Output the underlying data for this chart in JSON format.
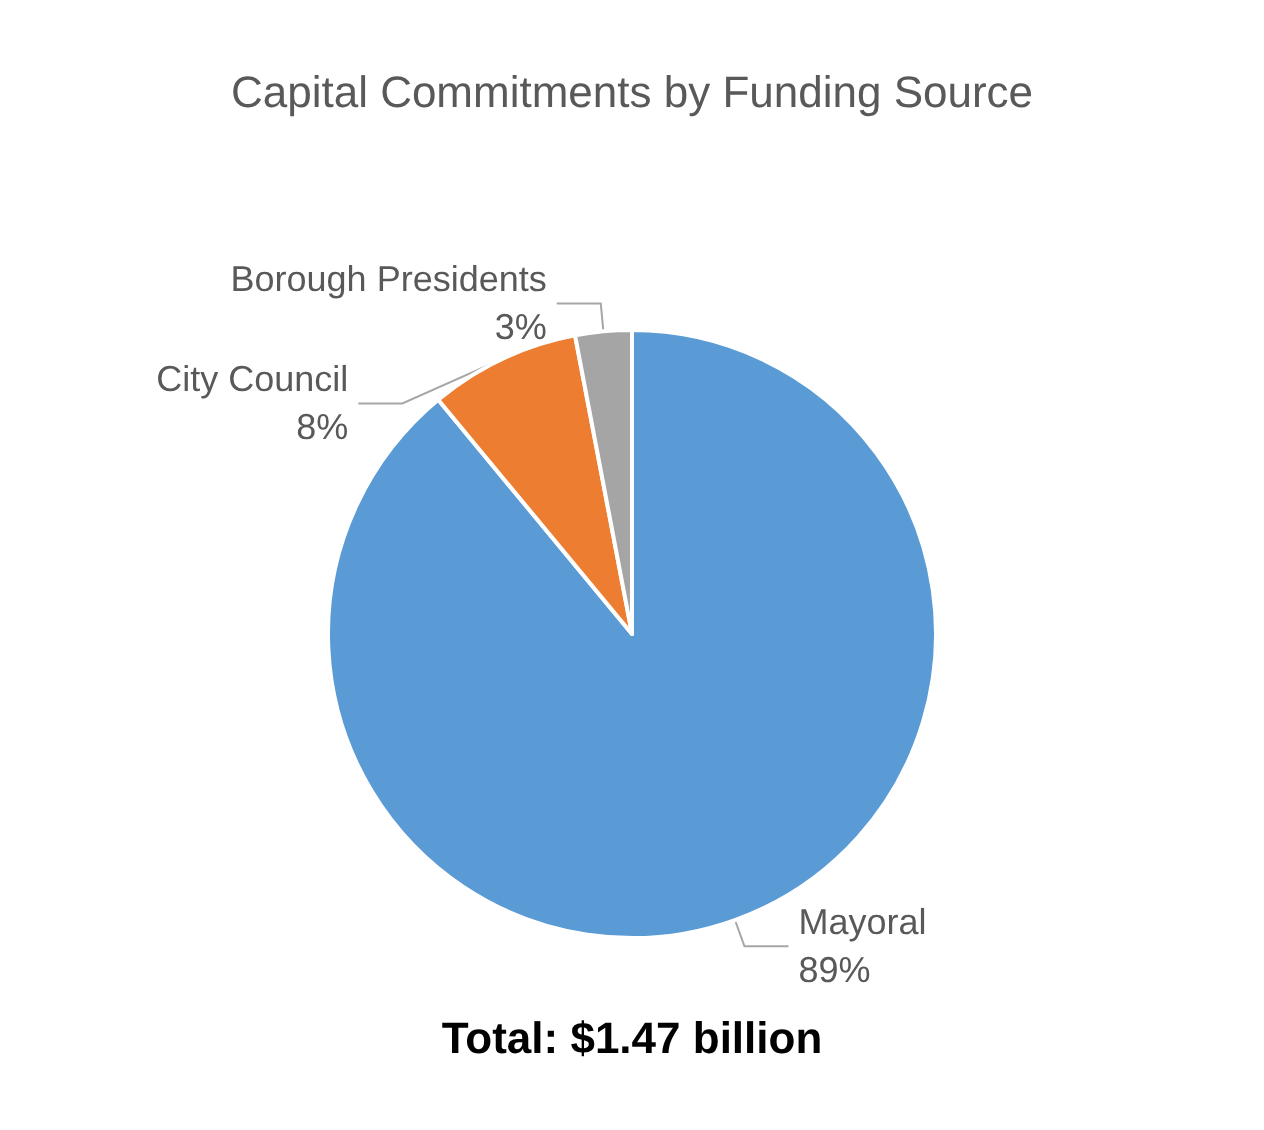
{
  "chart_data": {
    "type": "pie",
    "title": "Capital Commitments by Funding Source",
    "categories": [
      "Mayoral",
      "City Council",
      "Borough Presidents"
    ],
    "values": [
      89,
      8,
      3
    ],
    "value_labels": [
      "89%",
      "8%",
      "3%"
    ],
    "colors": [
      "#5b9bd5",
      "#ed7d31",
      "#a5a5a5"
    ],
    "annotations": [
      "Total: $1.47 billion"
    ],
    "legend": false
  }
}
